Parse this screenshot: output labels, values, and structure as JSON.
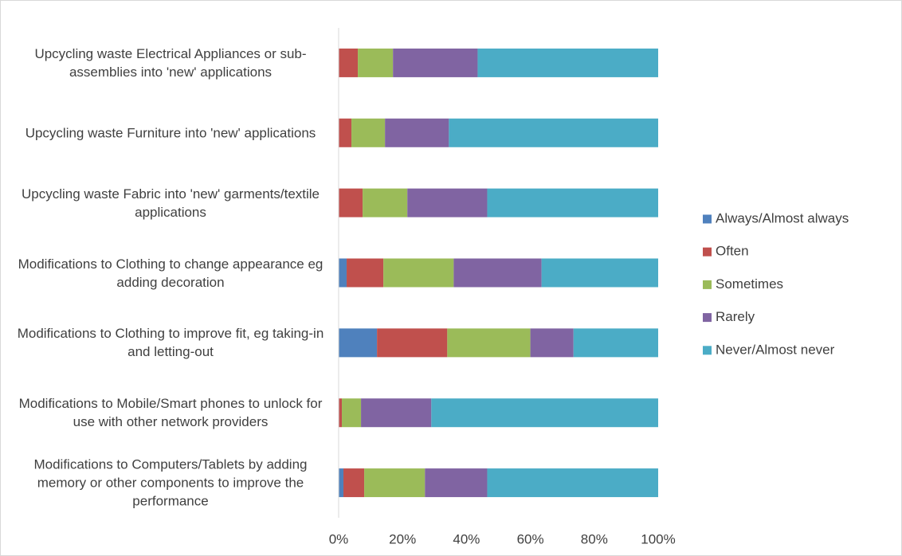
{
  "chart_data": {
    "type": "stacked_barh",
    "categories": [
      "Upcycling waste Electrical Appliances or sub-assemblies into 'new' applications",
      "Upcycling waste Furniture into 'new' applications",
      "Upcycling waste Fabric into 'new' garments/textile applications",
      "Modifications to Clothing to change appearance eg adding decoration",
      "Modifications to Clothing to improve fit, eg taking-in and letting-out",
      "Modifications to Mobile/Smart phones to unlock for use with other network providers",
      "Modifications to Computers/Tablets by adding memory or other components to improve the performance"
    ],
    "series": [
      {
        "name": "Always/Almost always",
        "color": "#4f81bd",
        "values": [
          0,
          0,
          0,
          2.5,
          12,
          0,
          1.5
        ]
      },
      {
        "name": "Often",
        "color": "#c0504d",
        "values": [
          6,
          4,
          7.5,
          11.5,
          22,
          1,
          6.5
        ]
      },
      {
        "name": "Sometimes",
        "color": "#9bbb59",
        "values": [
          11,
          10.5,
          14,
          22,
          26,
          6,
          19
        ]
      },
      {
        "name": "Rarely",
        "color": "#8064a2",
        "values": [
          26.5,
          20,
          25,
          27.5,
          13.5,
          22,
          19.5
        ]
      },
      {
        "name": "Never/Almost never",
        "color": "#4bacc6",
        "values": [
          56.5,
          65.5,
          53.5,
          36.5,
          26.5,
          71,
          53.5
        ]
      }
    ],
    "xlim": [
      0,
      100
    ],
    "xticks": [
      {
        "value": 0,
        "label": "0%"
      },
      {
        "value": 20,
        "label": "20%"
      },
      {
        "value": 40,
        "label": "40%"
      },
      {
        "value": 60,
        "label": "60%"
      },
      {
        "value": 80,
        "label": "80%"
      },
      {
        "value": 100,
        "label": "100%"
      }
    ],
    "grid": false,
    "legend": "right"
  }
}
